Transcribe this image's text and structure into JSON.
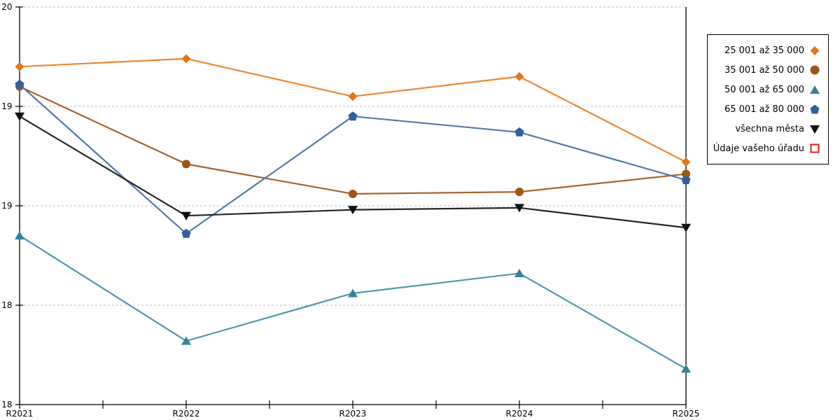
{
  "chart_data": {
    "type": "line",
    "title": "",
    "xlabel": "",
    "ylabel": "",
    "categories": [
      "R2021",
      "R2022",
      "R2023",
      "R2024",
      "R2025"
    ],
    "y_axis": {
      "min": 18,
      "max": 20,
      "ticks": [
        {
          "label": "20",
          "value": 20.0
        },
        {
          "label": "19",
          "value": 19.5
        },
        {
          "label": "19",
          "value": 19.0
        },
        {
          "label": "18",
          "value": 18.5
        },
        {
          "label": "18",
          "value": 18.0
        }
      ]
    },
    "grid": "horizontal-dashed",
    "legend_position": "outside-top-right",
    "series": [
      {
        "name": "25 001 až 35 000",
        "marker": "diamond",
        "line_color": "#ED8633",
        "marker_color": "#E2761B",
        "values": [
          19.7,
          19.74,
          19.55,
          19.65,
          19.22
        ]
      },
      {
        "name": "35 001 až 50 000",
        "marker": "circle",
        "line_color": "#A9632D",
        "marker_color": "#9E5614",
        "values": [
          19.6,
          19.21,
          19.06,
          19.07,
          19.16
        ]
      },
      {
        "name": "50 001 až 65 000",
        "marker": "triangle-up",
        "line_color": "#4E99AB",
        "marker_color": "#35829A",
        "values": [
          18.85,
          18.32,
          18.56,
          18.66,
          18.18
        ]
      },
      {
        "name": "65 001 až 80 000",
        "marker": "pentagon",
        "line_color": "#5379A9",
        "marker_color": "#33609B",
        "values": [
          19.61,
          18.86,
          19.45,
          19.37,
          19.13
        ]
      },
      {
        "name": "všechna města",
        "marker": "triangle-down",
        "line_color": "#262626",
        "marker_color": "#111111",
        "values": [
          19.45,
          18.95,
          18.98,
          18.99,
          18.89
        ]
      },
      {
        "name": "Údaje vašeho úřadu",
        "marker": "square-open",
        "line_color": "#E21B1B",
        "marker_color": "#E21B1B",
        "values": []
      }
    ],
    "colors": {
      "grid_line": "#BFBFBF",
      "axis_line": "#000000",
      "background": "#FFFFFF"
    }
  }
}
